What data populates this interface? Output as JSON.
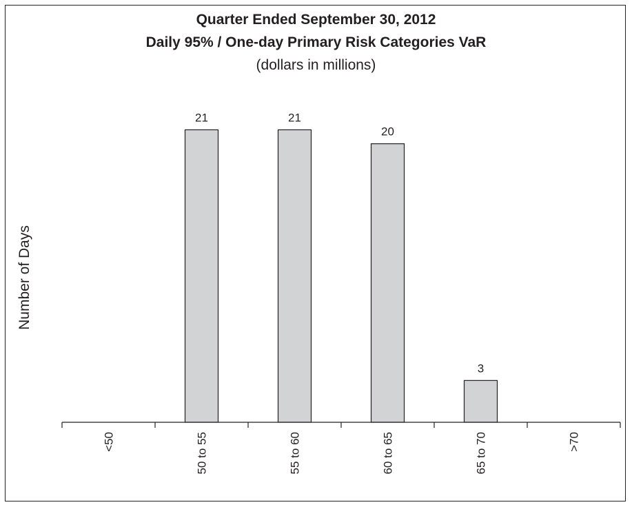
{
  "chart_data": {
    "type": "bar",
    "title": "Quarter Ended September 30, 2012",
    "subtitle": "Daily 95% / One-day Primary Risk Categories VaR",
    "units_note": "(dollars in millions)",
    "xlabel": "",
    "ylabel": "Number of Days",
    "categories": [
      "<50",
      "50 to 55",
      "55 to 60",
      "60 to 65",
      "65 to 70",
      ">70"
    ],
    "values": [
      0,
      21,
      21,
      20,
      3,
      0
    ],
    "data_labels": [
      "",
      "21",
      "21",
      "20",
      "3",
      ""
    ],
    "ylim": [
      0,
      23
    ],
    "grid": false,
    "legend": "none",
    "bar_color": "#d1d3d4",
    "bar_edge_color": "#231f20"
  }
}
